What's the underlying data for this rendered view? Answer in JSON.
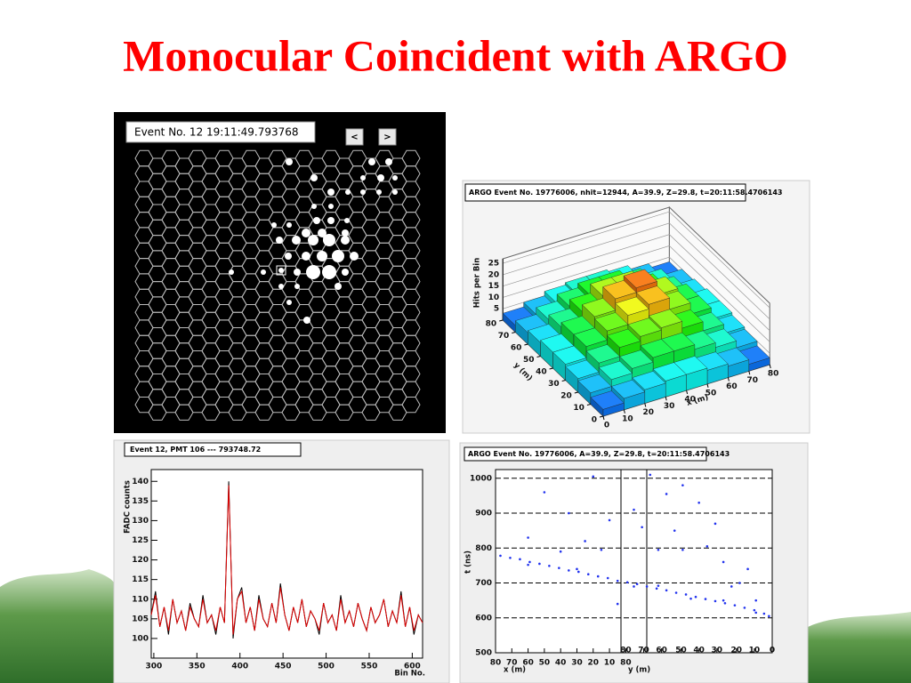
{
  "title": "Monocular Coincident with ARGO",
  "event_display": {
    "label": "Event No. 12 19:11:49.793768",
    "prev_button": "<",
    "next_button": ">"
  },
  "chart_data": [
    {
      "type": "line",
      "title": "Event 12, PMT 106 --- 793748.72",
      "y_label": "FADC counts",
      "x_label": "Bin No.",
      "x": [
        297,
        302,
        307,
        312,
        317,
        322,
        327,
        332,
        337,
        342,
        347,
        352,
        357,
        362,
        367,
        372,
        377,
        382,
        387,
        392,
        397,
        402,
        407,
        412,
        417,
        422,
        427,
        432,
        437,
        442,
        447,
        452,
        457,
        462,
        467,
        472,
        477,
        482,
        487,
        492,
        497,
        502,
        507,
        512,
        517,
        522,
        527,
        532,
        537,
        542,
        547,
        552,
        557,
        562,
        567,
        572,
        577,
        582,
        587,
        592,
        597,
        602,
        607,
        612
      ],
      "series": [
        {
          "color": "#000000",
          "values": [
            106,
            112,
            103,
            108,
            101,
            110,
            104,
            107,
            102,
            109,
            105,
            103,
            111,
            104,
            106,
            101,
            108,
            104,
            140,
            100,
            110,
            113,
            104,
            108,
            102,
            111,
            105,
            103,
            109,
            104,
            114,
            106,
            102,
            108,
            104,
            110,
            103,
            107,
            105,
            101,
            109,
            104,
            106,
            102,
            111,
            104,
            107,
            103,
            109,
            105,
            102,
            108,
            104,
            106,
            110,
            103,
            107,
            104,
            112,
            103,
            108,
            101,
            106,
            104
          ]
        },
        {
          "color": "#e00000",
          "values": [
            106,
            111,
            103,
            108,
            102,
            110,
            104,
            107,
            102,
            108,
            105,
            103,
            110,
            104,
            106,
            102,
            108,
            104,
            139,
            101,
            110,
            112,
            104,
            108,
            102,
            110,
            105,
            103,
            109,
            104,
            113,
            106,
            102,
            108,
            104,
            110,
            103,
            107,
            105,
            102,
            109,
            104,
            106,
            102,
            110,
            104,
            107,
            103,
            109,
            105,
            102,
            108,
            104,
            106,
            110,
            103,
            107,
            104,
            111,
            103,
            108,
            102,
            106,
            104
          ]
        }
      ],
      "xlim": [
        297,
        612
      ],
      "ylim": [
        95,
        143
      ],
      "xticks": [
        300,
        350,
        400,
        450,
        500,
        550,
        600
      ],
      "yticks": [
        100,
        105,
        110,
        115,
        120,
        125,
        130,
        135,
        140
      ]
    },
    {
      "type": "lego",
      "title": "ARGO Event No. 19776006, nhit=12944, A=39.9, Z=29.8, t=20:11:58.4706143",
      "z_label": "Hits per Bin",
      "y_label": "y (m)",
      "x_label": "x (m)",
      "x": [
        5,
        15,
        25,
        35,
        45,
        55,
        65,
        75
      ],
      "y": [
        5,
        15,
        25,
        35,
        45,
        55,
        65,
        75
      ],
      "values": [
        [
          3,
          5,
          6,
          7,
          7,
          6,
          5,
          3
        ],
        [
          5,
          8,
          10,
          12,
          12,
          10,
          8,
          5
        ],
        [
          6,
          10,
          14,
          16,
          17,
          14,
          10,
          6
        ],
        [
          7,
          12,
          16,
          20,
          22,
          17,
          12,
          7
        ],
        [
          7,
          12,
          17,
          22,
          24,
          18,
          12,
          7
        ],
        [
          6,
          10,
          14,
          18,
          18,
          14,
          10,
          6
        ],
        [
          5,
          8,
          11,
          13,
          13,
          11,
          8,
          5
        ],
        [
          3,
          5,
          7,
          8,
          8,
          7,
          5,
          3
        ]
      ],
      "xlim": [
        0,
        80
      ],
      "ylim": [
        0,
        80
      ],
      "zlim": [
        0,
        27
      ],
      "xticks": [
        0,
        10,
        20,
        30,
        40,
        50,
        60,
        70,
        80
      ],
      "yticks": [
        0,
        10,
        20,
        30,
        40,
        50,
        60,
        70,
        80
      ],
      "zticks": [
        5,
        10,
        15,
        20,
        25
      ]
    },
    {
      "type": "scatter",
      "title": "ARGO Event No. 19776006, A=39.9, Z=29.8, t=20:11:58.4706143",
      "y_label": "t (ns)",
      "x_label": "x (m)",
      "x2_label": "y (m)",
      "color": "#2233ee",
      "x": [
        3,
        9,
        15,
        21,
        27,
        33,
        39,
        45,
        51,
        57,
        63,
        69,
        75,
        81,
        87,
        93,
        99,
        105,
        111,
        117,
        123,
        129,
        135,
        141,
        147,
        153,
        159,
        165,
        168,
        20,
        50,
        85,
        100,
        120,
        140,
        160,
        40,
        55,
        70,
        85,
        100,
        110,
        125,
        140,
        150,
        30,
        60,
        95,
        115,
        135,
        155,
        20,
        75,
        105,
        130,
        145,
        90,
        65,
        45,
        160,
        115
      ],
      "values": [
        778,
        772,
        768,
        760,
        755,
        749,
        743,
        736,
        732,
        725,
        719,
        714,
        706,
        702,
        697,
        690,
        684,
        679,
        672,
        667,
        660,
        654,
        648,
        642,
        636,
        629,
        622,
        612,
        605,
        752,
        740,
        690,
        692,
        655,
        650,
        615,
        790,
        820,
        880,
        910,
        795,
        850,
        930,
        760,
        700,
        960,
        1005,
        1010,
        980,
        870,
        740,
        830,
        640,
        955,
        805,
        690,
        860,
        795,
        900,
        650,
        795
      ],
      "xlim": [
        0,
        170
      ],
      "ylim": [
        500,
        1025
      ],
      "xticks": [
        {
          "value": 0,
          "label": "80"
        },
        {
          "value": 10,
          "label": "70"
        },
        {
          "value": 20,
          "label": "60"
        },
        {
          "value": 30,
          "label": "50"
        },
        {
          "value": 40,
          "label": "40"
        },
        {
          "value": 50,
          "label": "30"
        },
        {
          "value": 60,
          "label": "20"
        },
        {
          "value": 70,
          "label": "10"
        },
        80
      ],
      "x2ticks": [
        80,
        {
          "value": 91,
          "label": "70"
        },
        {
          "value": 102,
          "label": "60"
        },
        {
          "value": 114,
          "label": "50"
        },
        {
          "value": 125,
          "label": "40"
        },
        {
          "value": 136,
          "label": "30"
        },
        {
          "value": 148,
          "label": "20"
        },
        {
          "value": 159,
          "label": "10"
        },
        {
          "value": 170,
          "label": "0"
        }
      ],
      "yticks": [
        500,
        600,
        700,
        800,
        900,
        1000
      ],
      "grid": true
    }
  ]
}
